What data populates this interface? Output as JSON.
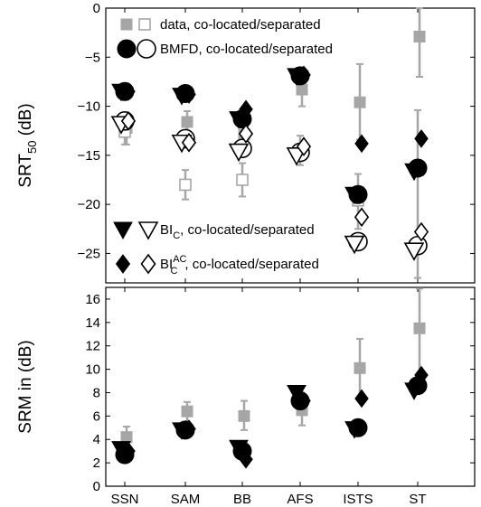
{
  "chart_data": [
    {
      "type": "scatter",
      "panel": "top",
      "ylabel": "SRT",
      "ylabel_sub": "50",
      "ylabel_unit": "(dB)",
      "ylim": [
        -28,
        0
      ],
      "yticks": [
        0,
        -5,
        -10,
        -15,
        -20,
        -25
      ],
      "categories": [
        "SSN",
        "SAM",
        "BB",
        "AFS",
        "ISTS",
        "ST"
      ],
      "legend": [
        {
          "marker": "square",
          "label": "data, co-located/separated"
        },
        {
          "marker": "circle",
          "label": "BMFD, co-located/separated"
        },
        {
          "marker": "triangle",
          "label_main": "BI",
          "label_sub": "C",
          "label_sup": "",
          "label_rest": ", co-located/separated"
        },
        {
          "marker": "diamond",
          "label_main": "BI",
          "label_sub": "C",
          "label_sup": "AC",
          "label_rest": ", co-located/separated"
        }
      ],
      "series": [
        {
          "model": "data",
          "condition": "co-located",
          "marker": "square",
          "filled": true,
          "color": "#a6a6a6",
          "values": [
            -12.2,
            -11.6,
            -12.9,
            -8.3,
            -9.6,
            -2.9
          ],
          "err_low": [
            -13.9,
            -13.2,
            -14.2,
            -10.0,
            -13.4,
            -7.0
          ],
          "err_high": [
            -11.1,
            -10.5,
            -11.6,
            -6.7,
            -5.7,
            0
          ]
        },
        {
          "model": "data",
          "condition": "separated",
          "marker": "square",
          "filled": false,
          "color": "#a6a6a6",
          "values": [
            -12.6,
            -18.0,
            -17.5,
            -14.5,
            -19.6,
            -16.5
          ],
          "err_low": [
            -13.9,
            -19.5,
            -19.2,
            -16.0,
            -22.5,
            -27.5
          ],
          "err_high": [
            -11.4,
            -16.5,
            -15.8,
            -13.0,
            -16.9,
            -10.4
          ]
        },
        {
          "model": "BMFD",
          "condition": "co-located",
          "marker": "circle",
          "filled": true,
          "color": "#000000",
          "values": [
            -8.5,
            -8.7,
            -11.3,
            -6.9,
            -19.0,
            -16.3
          ]
        },
        {
          "model": "BMFD",
          "condition": "separated",
          "marker": "circle",
          "filled": false,
          "color": "#000000",
          "values": [
            -11.5,
            -13.3,
            -14.3,
            -14.7,
            -23.8,
            -24.2
          ]
        },
        {
          "model": "BIC",
          "condition": "co-located",
          "marker": "triangle",
          "filled": true,
          "color": "#000000",
          "values": [
            -8.5,
            -8.9,
            -11.3,
            -6.9,
            -19.0,
            -16.6
          ]
        },
        {
          "model": "BIC",
          "condition": "separated",
          "marker": "triangle",
          "filled": false,
          "color": "#000000",
          "values": [
            -11.8,
            -13.7,
            -14.6,
            -15.0,
            -24.0,
            -24.7
          ]
        },
        {
          "model": "BICAC",
          "condition": "co-located",
          "marker": "diamond",
          "filled": true,
          "color": "#000000",
          "values": [
            -8.5,
            -8.8,
            -10.3,
            -6.8,
            -13.8,
            -13.3
          ]
        },
        {
          "model": "BICAC",
          "condition": "separated",
          "marker": "diamond",
          "filled": false,
          "color": "#000000",
          "values": [
            -11.5,
            -13.7,
            -12.8,
            -14.1,
            -21.3,
            -22.8
          ]
        }
      ]
    },
    {
      "type": "scatter",
      "panel": "bottom",
      "ylabel": "SRM in (dB)",
      "ylim": [
        0,
        17
      ],
      "yticks": [
        0,
        2,
        4,
        6,
        8,
        10,
        12,
        14,
        16
      ],
      "categories": [
        "SSN",
        "SAM",
        "BB",
        "AFS",
        "ISTS",
        "ST"
      ],
      "series": [
        {
          "model": "data",
          "marker": "square",
          "filled": true,
          "color": "#a6a6a6",
          "values": [
            4.2,
            6.4,
            6.0,
            6.5,
            10.1,
            13.5
          ],
          "err_low": [
            3.3,
            5.5,
            4.8,
            5.2,
            7.5,
            8.0
          ],
          "err_high": [
            5.1,
            7.2,
            7.3,
            7.7,
            12.6,
            16.9
          ]
        },
        {
          "model": "BMFD",
          "marker": "circle",
          "filled": true,
          "color": "#000000",
          "values": [
            2.7,
            4.8,
            3.0,
            7.3,
            5.0,
            8.6
          ]
        },
        {
          "model": "BIC",
          "marker": "triangle",
          "filled": true,
          "color": "#000000",
          "values": [
            3.2,
            4.8,
            3.3,
            8.0,
            4.9,
            8.2
          ]
        },
        {
          "model": "BICAC",
          "marker": "diamond",
          "filled": true,
          "color": "#000000",
          "values": [
            3.0,
            4.9,
            2.3,
            7.3,
            7.5,
            9.5
          ]
        }
      ]
    }
  ]
}
